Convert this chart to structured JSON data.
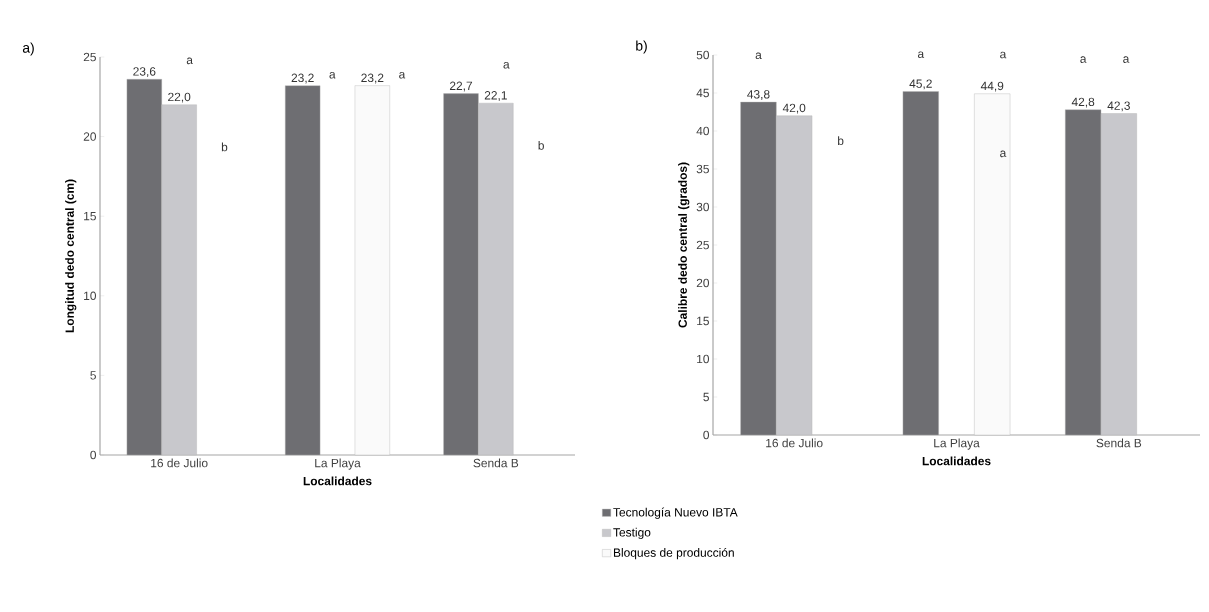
{
  "chart_data": [
    {
      "type": "bar",
      "title": "a)",
      "xlabel": "Localidades",
      "ylabel": "Longitud dedo central (cm)",
      "categories": [
        "16 de Julio",
        "La Playa",
        "Senda B"
      ],
      "series": [
        {
          "color": "#6e6e72",
          "values": [
            23.6,
            23.2,
            22.7
          ],
          "value_labels": [
            "23,6",
            "23,2",
            "22,7"
          ]
        },
        {
          "color": "#c8c8cc",
          "values": [
            22.0,
            null,
            22.1
          ],
          "value_labels": [
            "22,0",
            null,
            "22,1"
          ]
        },
        {
          "color": "#fafafa",
          "values": [
            null,
            23.2,
            null
          ],
          "value_labels": [
            null,
            "23,2",
            null
          ]
        }
      ],
      "ylim": [
        0,
        25
      ],
      "yticks": [
        0,
        5,
        10,
        15,
        20,
        25
      ],
      "annotations": [
        "a",
        "b",
        "a",
        "a",
        "a",
        "b"
      ]
    },
    {
      "type": "bar",
      "title": "b)",
      "xlabel": "Localidades",
      "ylabel": "Calibre dedo central (grados)",
      "categories": [
        "16 de Julio",
        "La Playa",
        "Senda B"
      ],
      "series": [
        {
          "name": "Tecnología Nuevo IBTA",
          "color": "#6e6e72",
          "values": [
            43.8,
            45.2,
            42.8
          ],
          "value_labels": [
            "43,8",
            "45,2",
            "42,8"
          ]
        },
        {
          "name": "Testigo",
          "color": "#c8c8cc",
          "values": [
            42.0,
            null,
            42.3
          ],
          "value_labels": [
            "42,0",
            null,
            "42,3"
          ]
        },
        {
          "name": "Bloques de producción",
          "color": "#fafafa",
          "values": [
            null,
            44.9,
            null
          ],
          "value_labels": [
            null,
            "44,9",
            null
          ]
        }
      ],
      "ylim": [
        0,
        50
      ],
      "yticks": [
        0,
        5,
        10,
        15,
        20,
        25,
        30,
        35,
        40,
        45,
        50
      ],
      "legend": "bottom",
      "annotations": [
        "a",
        "b",
        "a",
        "a",
        "a",
        "a",
        "a"
      ]
    }
  ]
}
